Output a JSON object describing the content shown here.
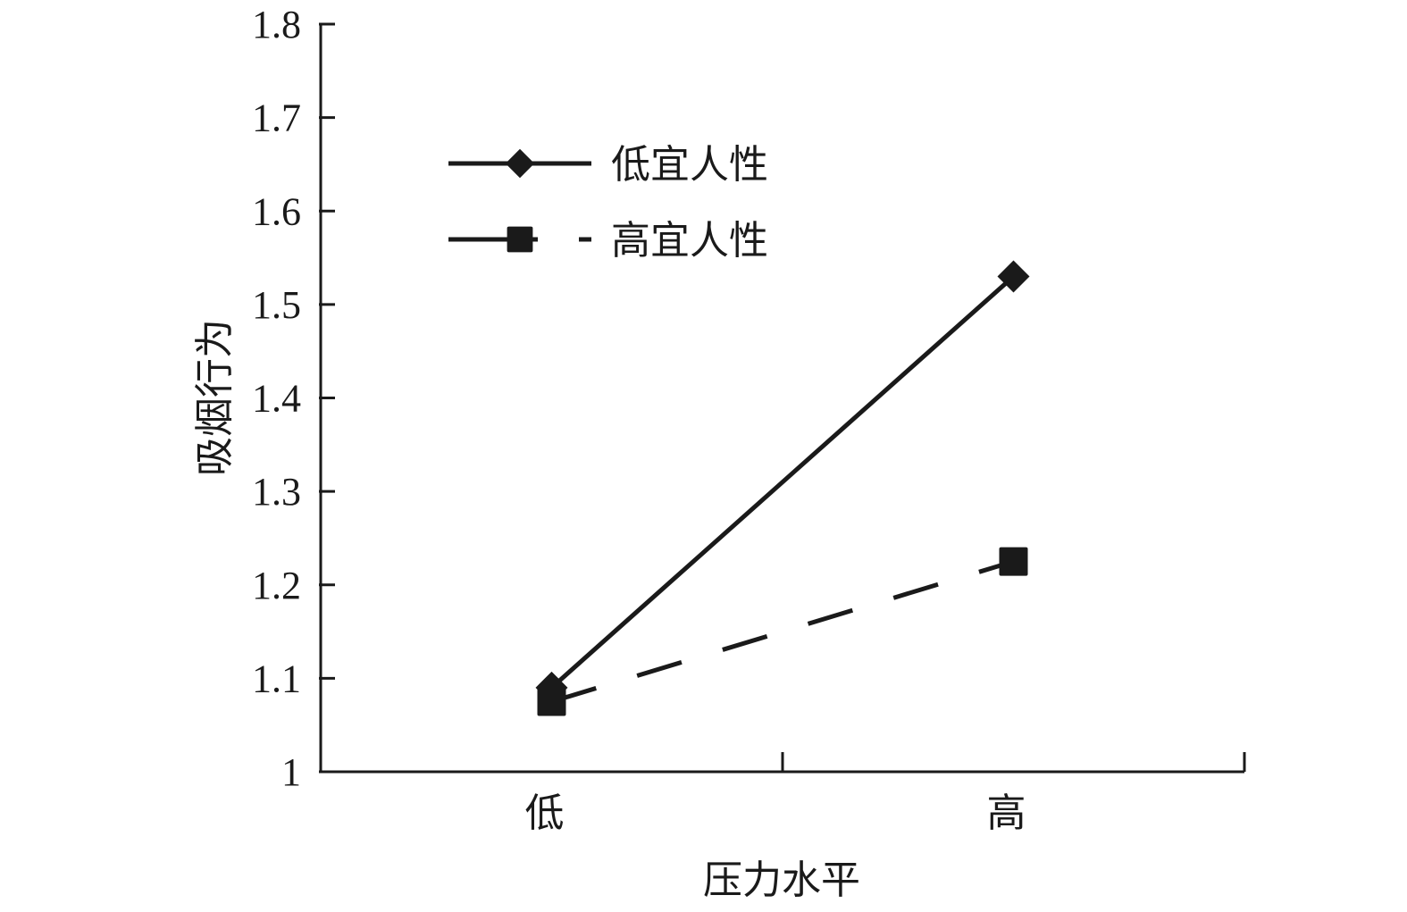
{
  "chart_data": {
    "type": "line",
    "title": "",
    "xlabel": "压力水平",
    "ylabel": "吸烟行为",
    "categories": [
      "低",
      "高"
    ],
    "ylim": [
      1,
      1.8
    ],
    "yticks": [
      "1",
      "1.1",
      "1.2",
      "1.3",
      "1.4",
      "1.5",
      "1.6",
      "1.7",
      "1.8"
    ],
    "grid": false,
    "legend_position": "top-left",
    "series": [
      {
        "name": "低宜人性",
        "values": [
          1.09,
          1.53
        ],
        "marker": "diamond",
        "line_style": "solid",
        "color": "#1a1a1a"
      },
      {
        "name": "高宜人性",
        "values": [
          1.075,
          1.225
        ],
        "marker": "square",
        "line_style": "dashed",
        "color": "#1a1a1a"
      }
    ]
  }
}
